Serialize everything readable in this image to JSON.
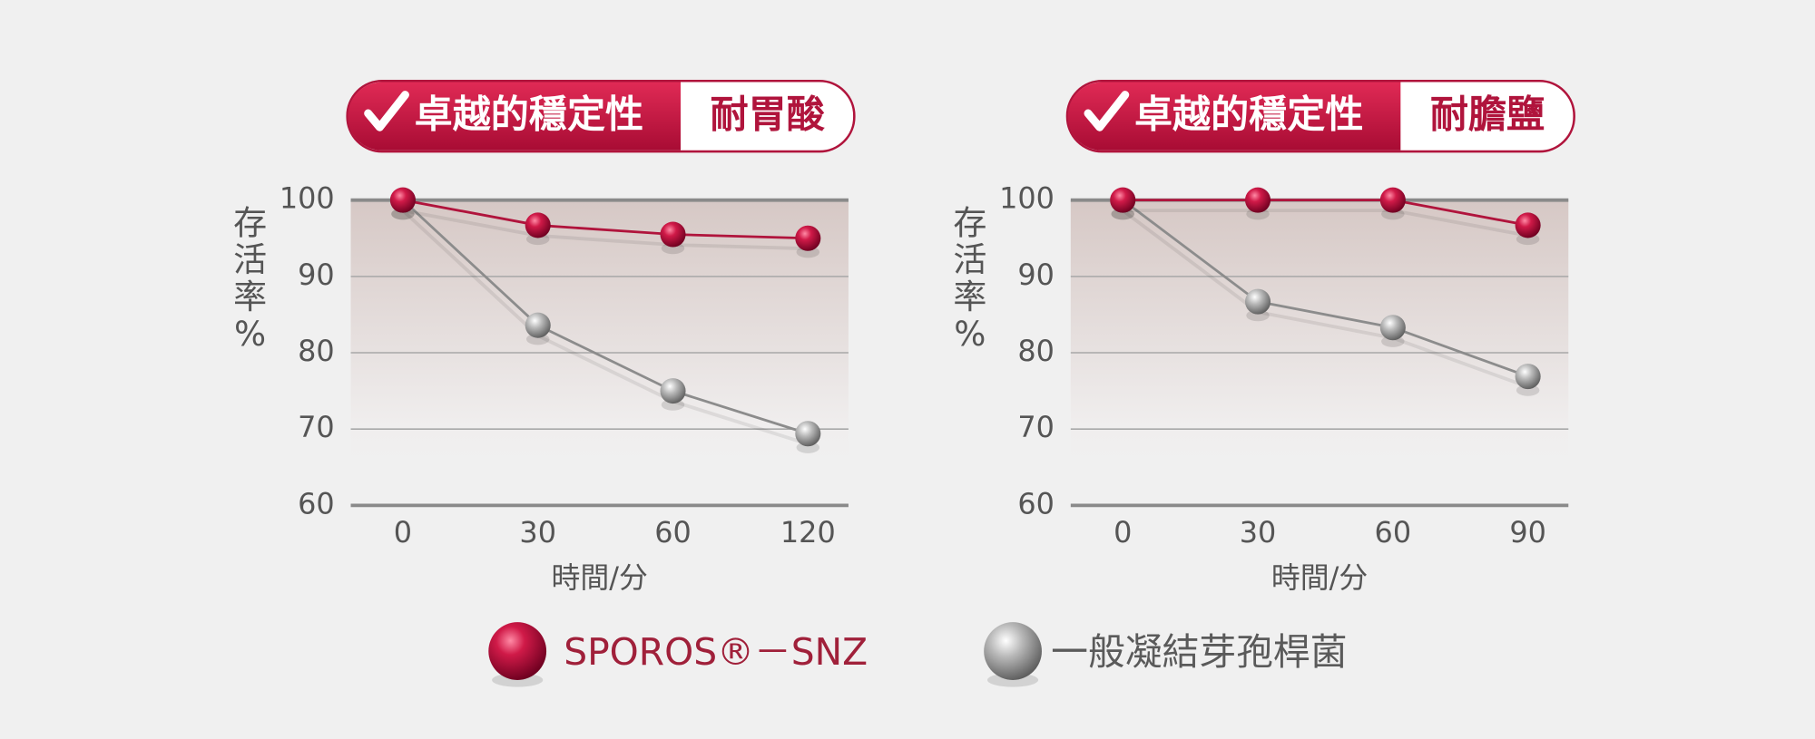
{
  "chart_data": [
    {
      "type": "line",
      "title": "卓越的穩定性",
      "subtitle": "耐胃酸",
      "ylabel": "存活率%",
      "xlabel": "時間/分",
      "categories": [
        "0",
        "30",
        "60",
        "120"
      ],
      "series": [
        {
          "name": "SPOROS®－SNZ",
          "color": "#b0143c",
          "values": [
            100,
            96.7,
            95.5,
            95
          ]
        },
        {
          "name": "一般凝結芽孢桿菌",
          "color": "#8c8c8c",
          "values": [
            100,
            83.6,
            75,
            69.4
          ]
        }
      ],
      "ylim": [
        60,
        100
      ],
      "yticks": [
        60,
        70,
        80,
        90,
        100
      ],
      "grid": true
    },
    {
      "type": "line",
      "title": "卓越的穩定性",
      "subtitle": "耐膽鹽",
      "ylabel": "存活率%",
      "xlabel": "時間/分",
      "categories": [
        "0",
        "30",
        "60",
        "90"
      ],
      "series": [
        {
          "color": "#b0143c",
          "values": [
            100,
            100,
            100,
            96.7
          ]
        },
        {
          "color": "#8c8c8c",
          "values": [
            100,
            86.7,
            83.3,
            76.9
          ]
        }
      ],
      "ylim": [
        60,
        100
      ],
      "yticks": [
        60,
        70,
        80,
        90,
        100
      ],
      "grid": true
    }
  ]
}
